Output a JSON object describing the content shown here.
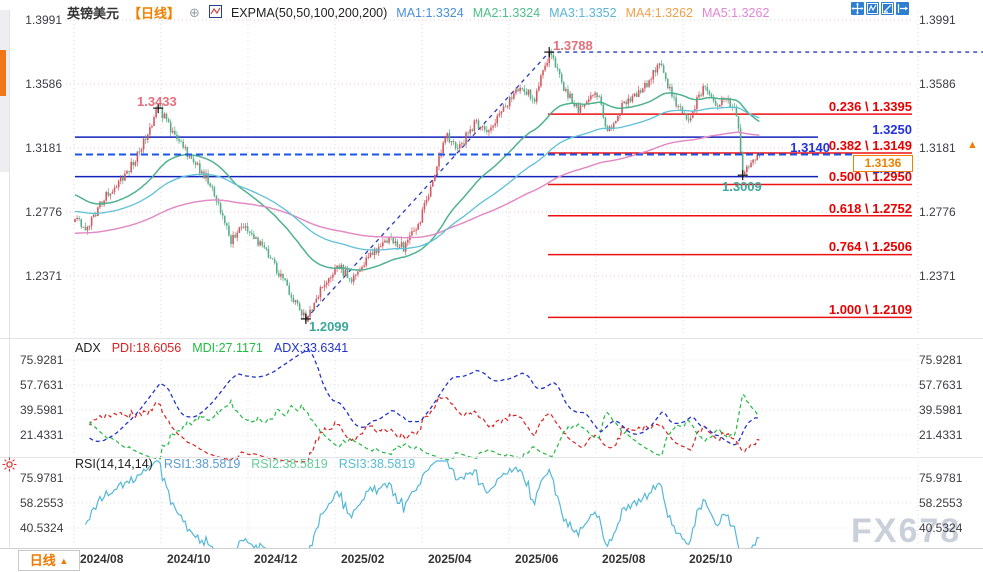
{
  "header": {
    "symbol": "英镑美元",
    "period": "【日线】",
    "indicator": "EXPMA(50,50,100,200,200)",
    "ma_labels": [
      {
        "text": "MA1:1.3324",
        "color": "#4a90d9"
      },
      {
        "text": "MA2:1.3324",
        "color": "#4dc088"
      },
      {
        "text": "MA3:1.3352",
        "color": "#5ab4d8"
      },
      {
        "text": "MA4:1.3262",
        "color": "#f0a048"
      },
      {
        "text": "MA5:1.3262",
        "color": "#e285d5"
      }
    ],
    "icons": {
      "add_indicator": "⊕"
    }
  },
  "toolbar": {
    "icons": [
      "pan-crosshair",
      "indicator-window",
      "trend-window",
      "collapse-right"
    ]
  },
  "price_axis": {
    "ticks": [
      "1.3991",
      "1.3586",
      "1.3181",
      "1.2776",
      "1.2371"
    ]
  },
  "fib": [
    {
      "label": "0.236 \\ 1.3395",
      "price": 1.3395
    },
    {
      "label": "0.382 \\ 1.3149",
      "price": 1.3149
    },
    {
      "label": "0.500 \\ 1.2950",
      "price": 1.295
    },
    {
      "label": "0.618 \\ 1.2752",
      "price": 1.2752
    },
    {
      "label": "0.764 \\ 1.2506",
      "price": 1.2506
    },
    {
      "label": "1.000 \\ 1.2109",
      "price": 1.2109
    }
  ],
  "levels": [
    {
      "label": "1.3250",
      "price": 1.325,
      "style": "solid"
    },
    {
      "label": "1.3140",
      "price": 1.314,
      "style": "dashed"
    },
    {
      "label": "1.3000",
      "price": 1.3,
      "style": "solid"
    }
  ],
  "current_price": "1.3136",
  "annotations": [
    {
      "text": "1.3433",
      "kind": "high"
    },
    {
      "text": "1.3788",
      "kind": "high"
    },
    {
      "text": "1.2099",
      "kind": "low"
    },
    {
      "text": "1.3009",
      "kind": "low"
    }
  ],
  "adx_panel": {
    "title": "ADX",
    "pdi": "PDI:18.6056",
    "mdi": "MDI:27.1171",
    "adx": "ADX:33.6341",
    "ticks": [
      "75.9281",
      "57.7631",
      "39.5981",
      "21.4331"
    ]
  },
  "rsi_panel": {
    "title": "RSI(14,14,14)",
    "rsi1": "RSI1:38.5819",
    "rsi2": "RSI2:38.5819",
    "rsi3": "RSI3:38.5819",
    "ticks": [
      "75.9781",
      "58.2553",
      "40.5324"
    ]
  },
  "timeline": {
    "tab": "日线",
    "tab_arrow": "▲",
    "dates": [
      "2024/08",
      "2024/10",
      "2024/12",
      "2025/02",
      "2025/04",
      "2025/06",
      "2025/08",
      "2025/10"
    ]
  },
  "watermark": "FX678",
  "price_arrow": "▲",
  "chart_data": {
    "type": "candlestick",
    "symbol": "GBP/USD 英镑美元",
    "period": "daily",
    "n_candles": 330,
    "price_keypoints": [
      [
        0,
        1.276
      ],
      [
        5,
        1.267
      ],
      [
        15,
        1.288
      ],
      [
        28,
        1.308
      ],
      [
        40,
        1.3433
      ],
      [
        52,
        1.318
      ],
      [
        64,
        1.298
      ],
      [
        75,
        1.26
      ],
      [
        81,
        1.27
      ],
      [
        90,
        1.256
      ],
      [
        101,
        1.232
      ],
      [
        111,
        1.2099
      ],
      [
        118,
        1.228
      ],
      [
        126,
        1.244
      ],
      [
        133,
        1.235
      ],
      [
        141,
        1.248
      ],
      [
        151,
        1.262
      ],
      [
        158,
        1.255
      ],
      [
        166,
        1.272
      ],
      [
        174,
        1.308
      ],
      [
        179,
        1.326
      ],
      [
        184,
        1.316
      ],
      [
        192,
        1.334
      ],
      [
        198,
        1.327
      ],
      [
        206,
        1.344
      ],
      [
        214,
        1.356
      ],
      [
        221,
        1.35
      ],
      [
        228,
        1.3788
      ],
      [
        235,
        1.356
      ],
      [
        242,
        1.342
      ],
      [
        251,
        1.353
      ],
      [
        256,
        1.328
      ],
      [
        263,
        1.344
      ],
      [
        269,
        1.35
      ],
      [
        275,
        1.358
      ],
      [
        281,
        1.372
      ],
      [
        288,
        1.348
      ],
      [
        295,
        1.336
      ],
      [
        302,
        1.356
      ],
      [
        308,
        1.346
      ],
      [
        313,
        1.35
      ],
      [
        317,
        1.342
      ],
      [
        319,
        1.33
      ],
      [
        321,
        1.3009
      ],
      [
        324,
        1.306
      ],
      [
        327,
        1.31
      ],
      [
        329,
        1.3136
      ]
    ],
    "marked_points": [
      {
        "i": 40,
        "price": 1.3433,
        "kind": "high"
      },
      {
        "i": 111,
        "price": 1.2099,
        "kind": "low"
      },
      {
        "i": 228,
        "price": 1.3788,
        "kind": "high"
      },
      {
        "i": 321,
        "price": 1.3009,
        "kind": "low"
      }
    ],
    "last_close": 1.3136,
    "axis": {
      "price_ticks": [
        1.3991,
        1.3586,
        1.3181,
        1.2776,
        1.2371
      ],
      "adx_ticks": [
        75.9281,
        57.7631,
        39.5981,
        21.4331
      ],
      "rsi_ticks": [
        75.9781,
        58.2553,
        40.5324
      ]
    },
    "x_labels": [
      "2024/08",
      "2024/10",
      "2024/12",
      "2025/02",
      "2025/04",
      "2025/06",
      "2025/08",
      "2025/10"
    ],
    "ema": {
      "periods": [
        50,
        50,
        100,
        200,
        200
      ],
      "current": [
        1.3324,
        1.3324,
        1.3352,
        1.3262,
        1.3262
      ],
      "seeds": [
        1.289,
        1.289,
        1.278,
        1.264,
        1.264
      ],
      "colors": [
        "#3b6fd4",
        "#4db884",
        "#5fc0d8",
        "#f0a048",
        "#e288d2"
      ]
    },
    "fib_anchor_high": 1.3788,
    "fib_anchor_low": 1.2109,
    "levels_solid": [
      1.325,
      1.3
    ],
    "level_dashed": 1.314,
    "adx": {
      "pdi": 18.6056,
      "mdi": 27.1171,
      "adx": 33.6341,
      "colors": {
        "pdi": "#dd2222",
        "mdi": "#22bb44",
        "adx": "#2233cc"
      }
    },
    "rsi": {
      "value": 38.5819,
      "colors": {
        "rsi1": "#5b9bd5",
        "rsi2": "#66cc99",
        "rsi3": "#55bbd5"
      },
      "line": "#56b8d8"
    },
    "colors": {
      "up": "#d25862",
      "down": "#57ad87",
      "fib_line": "#ee1111",
      "fib_label": "#e80000",
      "level_line": "#1122bb",
      "level_label": "#2233dd",
      "dashed_line": "#1a56e8",
      "trend_line": "#2a3bb8",
      "grid": "#ddd2d2",
      "price_marker": "#f08000",
      "swing_high_label": "#e4707c",
      "swing_low_label": "#3aa89a"
    }
  }
}
